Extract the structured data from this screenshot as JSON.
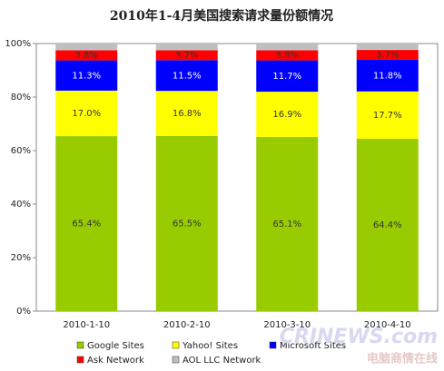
{
  "chart_data": {
    "type": "stacked_bar",
    "title": "2010年1-4月美国搜索请求量份额情况",
    "categories": [
      "2010-1-10",
      "2010-2-10",
      "2010-3-10",
      "2010-4-10"
    ],
    "series": [
      {
        "name": "Google Sites",
        "color": "#99cc00",
        "values": [
          65.4,
          65.5,
          65.1,
          64.4
        ],
        "value_labels": [
          "65.4%",
          "65.5%",
          "65.1%",
          "64.4%"
        ]
      },
      {
        "name": "Yahoo! Sites",
        "color": "#ffff00",
        "values": [
          17.0,
          16.8,
          16.9,
          17.7
        ],
        "value_labels": [
          "17.0%",
          "16.8%",
          "16.9%",
          "17.7%"
        ]
      },
      {
        "name": "Microsoft Sites",
        "color": "#0000ff",
        "values": [
          11.3,
          11.5,
          11.7,
          11.8
        ],
        "value_labels": [
          "11.3%",
          "11.5%",
          "11.7%",
          "11.8%"
        ]
      },
      {
        "name": "Ask Network",
        "color": "#ff0000",
        "values": [
          3.8,
          3.7,
          3.8,
          3.7
        ],
        "value_labels": [
          "3.8%",
          "3.7%",
          "3.8%",
          "3.7%"
        ]
      },
      {
        "name": "AOL LLC Network",
        "color": "#c0c0c0",
        "values": [
          2.5,
          2.5,
          2.5,
          2.4
        ]
      }
    ],
    "ylim": [
      0,
      100
    ],
    "yticks": [
      {
        "value": 0,
        "label": "0%"
      },
      {
        "value": 20,
        "label": "20%"
      },
      {
        "value": 40,
        "label": "40%"
      },
      {
        "value": 60,
        "label": "60%"
      },
      {
        "value": 80,
        "label": "80%"
      },
      {
        "value": 100,
        "label": "100%"
      }
    ],
    "grid": false,
    "watermark": "CRINEWS.com",
    "watermark_sub": "电脑商情在线"
  }
}
